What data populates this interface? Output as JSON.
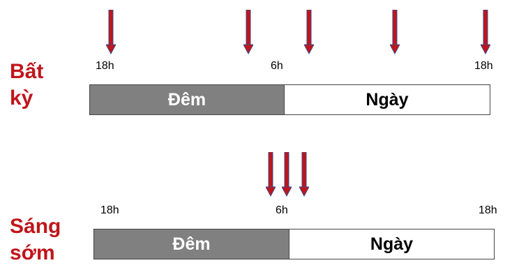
{
  "rows": [
    {
      "label_line1": "Bất",
      "label_line2": "kỳ",
      "tick_start": "18h",
      "tick_mid": "6h",
      "tick_end": "18h",
      "night_label": "Đêm",
      "day_label": "Ngày"
    },
    {
      "label_line1": "Sáng",
      "label_line2": "sớm",
      "tick_start": "18h",
      "tick_mid": "6h",
      "tick_end": "18h",
      "night_label": "Đêm",
      "day_label": "Ngày"
    }
  ],
  "colors": {
    "label": "#c0151b",
    "arrow_fill": "#c0151b",
    "arrow_outline": "#3a4a8a",
    "night": "#808080",
    "day": "#ffffff"
  }
}
